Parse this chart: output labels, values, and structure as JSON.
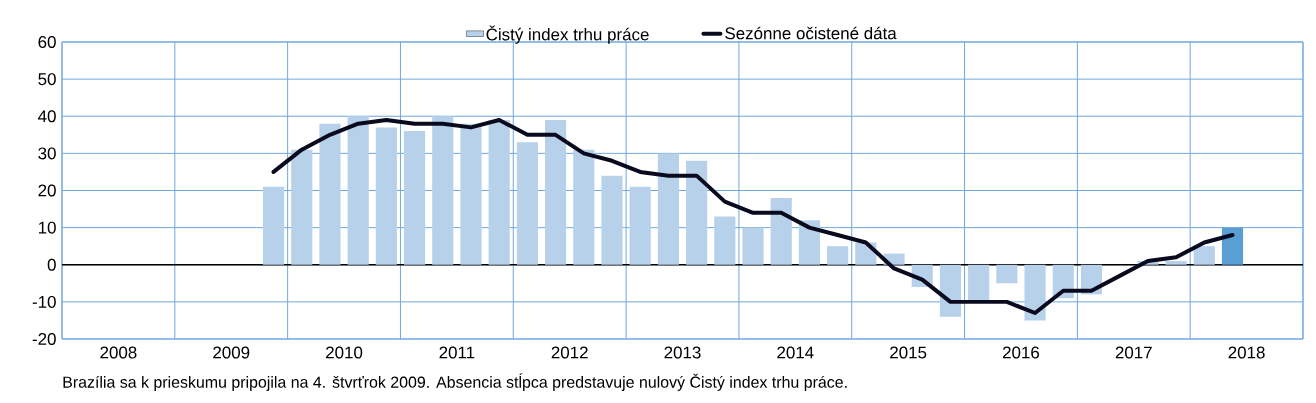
{
  "chart_data": {
    "type": "bar",
    "x": [
      2009.875,
      2010.125,
      2010.375,
      2010.625,
      2010.875,
      2011.125,
      2011.375,
      2011.625,
      2011.875,
      2012.125,
      2012.375,
      2012.625,
      2012.875,
      2013.125,
      2013.375,
      2013.625,
      2013.875,
      2014.125,
      2014.375,
      2014.625,
      2014.875,
      2015.125,
      2015.375,
      2015.625,
      2015.875,
      2016.125,
      2016.375,
      2016.625,
      2016.875,
      2017.125,
      2017.375,
      2017.625,
      2017.875,
      2018.125,
      2018.375
    ],
    "series": [
      {
        "name": "Čistý index trhu práce",
        "color": "#b8d1ea",
        "colors": [
          "#b8d1ea",
          "#b8d1ea",
          "#b8d1ea",
          "#b8d1ea",
          "#b8d1ea",
          "#b8d1ea",
          "#b8d1ea",
          "#b8d1ea",
          "#b8d1ea",
          "#b8d1ea",
          "#b8d1ea",
          "#b8d1ea",
          "#b8d1ea",
          "#b8d1ea",
          "#b8d1ea",
          "#b8d1ea",
          "#b8d1ea",
          "#b8d1ea",
          "#b8d1ea",
          "#b8d1ea",
          "#b8d1ea",
          "#b8d1ea",
          "#b8d1ea",
          "#b8d1ea",
          "#b8d1ea",
          "#b8d1ea",
          "#b8d1ea",
          "#b8d1ea",
          "#b8d1ea",
          "#b8d1ea",
          "#b8d1ea",
          "#b8d1ea",
          "#b8d1ea",
          "#b8d1ea",
          "#5a9fd4"
        ],
        "values": [
          21,
          31,
          38,
          40,
          37,
          36,
          40,
          38,
          39,
          33,
          39,
          31,
          24,
          21,
          30,
          28,
          13,
          10,
          18,
          12,
          5,
          6,
          3,
          -6,
          -14,
          -10,
          -5,
          -15,
          -9,
          -8,
          0,
          1,
          1,
          5,
          10
        ]
      },
      {
        "name": "Sezónne očistené dáta",
        "type": "line",
        "color": "#0a0a1e",
        "values": [
          25,
          31,
          35,
          38,
          39,
          38,
          38,
          37,
          39,
          35,
          35,
          30,
          28,
          25,
          24,
          24,
          17,
          14,
          14,
          10,
          8,
          6,
          -1,
          -4,
          -10,
          -10,
          -10,
          -13,
          -7,
          -7,
          -3,
          1,
          2,
          6,
          8
        ]
      }
    ],
    "xlim": [
      2008,
      2019
    ],
    "xticks": [
      {
        "value": 2008,
        "label": null
      },
      {
        "value": 2008.5,
        "label": "2008"
      },
      {
        "value": 2009,
        "label": null
      },
      {
        "value": 2009.5,
        "label": "2009"
      },
      {
        "value": 2010,
        "label": null
      },
      {
        "value": 2010.5,
        "label": "2010"
      },
      {
        "value": 2011,
        "label": null
      },
      {
        "value": 2011.5,
        "label": "2011"
      },
      {
        "value": 2012,
        "label": null
      },
      {
        "value": 2012.5,
        "label": "2012"
      },
      {
        "value": 2013,
        "label": null
      },
      {
        "value": 2013.5,
        "label": "2013"
      },
      {
        "value": 2014,
        "label": null
      },
      {
        "value": 2014.5,
        "label": "2014"
      },
      {
        "value": 2015,
        "label": null
      },
      {
        "value": 2015.5,
        "label": "2015"
      },
      {
        "value": 2016,
        "label": null
      },
      {
        "value": 2016.5,
        "label": "2016"
      },
      {
        "value": 2017,
        "label": null
      },
      {
        "value": 2017.5,
        "label": "2017"
      },
      {
        "value": 2018,
        "label": null
      },
      {
        "value": 2018.5,
        "label": "2018"
      },
      {
        "value": 2019,
        "label": null
      }
    ],
    "ylim": [
      -20,
      60
    ],
    "yticks": [
      -20,
      -10,
      0,
      10,
      20,
      30,
      40,
      50,
      60
    ],
    "grid": true,
    "legend": "top",
    "marker": "none",
    "line_style": "solid",
    "annotations": [
      "Brazília sa k prieskumu pripojila na 4. štvrťrok 2009. Absencia stĺpca predstavuje nulový Čistý index trhu práce."
    ]
  }
}
